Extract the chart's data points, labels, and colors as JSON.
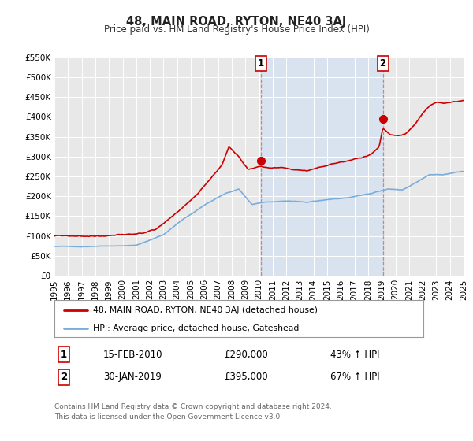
{
  "title": "48, MAIN ROAD, RYTON, NE40 3AJ",
  "subtitle": "Price paid vs. HM Land Registry's House Price Index (HPI)",
  "xlim": [
    1995,
    2025
  ],
  "ylim": [
    0,
    550000
  ],
  "yticks": [
    0,
    50000,
    100000,
    150000,
    200000,
    250000,
    300000,
    350000,
    400000,
    450000,
    500000,
    550000
  ],
  "ytick_labels": [
    "£0",
    "£50K",
    "£100K",
    "£150K",
    "£200K",
    "£250K",
    "£300K",
    "£350K",
    "£400K",
    "£450K",
    "£500K",
    "£550K"
  ],
  "xticks": [
    1995,
    1996,
    1997,
    1998,
    1999,
    2000,
    2001,
    2002,
    2003,
    2004,
    2005,
    2006,
    2007,
    2008,
    2009,
    2010,
    2011,
    2012,
    2013,
    2014,
    2015,
    2016,
    2017,
    2018,
    2019,
    2020,
    2021,
    2022,
    2023,
    2024,
    2025
  ],
  "bg_color": "#e8e8e8",
  "grid_color": "#ffffff",
  "red_line_color": "#cc0000",
  "blue_line_color": "#7aaddc",
  "sale1_x": 2010.12,
  "sale1_y": 290000,
  "sale2_x": 2019.08,
  "sale2_y": 395000,
  "vline_color": "#cc3333",
  "vline_alpha": 0.55,
  "legend_label_red": "48, MAIN ROAD, RYTON, NE40 3AJ (detached house)",
  "legend_label_blue": "HPI: Average price, detached house, Gateshead",
  "sale1_date": "15-FEB-2010",
  "sale1_price": "£290,000",
  "sale1_hpi": "43% ↑ HPI",
  "sale2_date": "30-JAN-2019",
  "sale2_price": "£395,000",
  "sale2_hpi": "67% ↑ HPI",
  "footer": "Contains HM Land Registry data © Crown copyright and database right 2024.\nThis data is licensed under the Open Government Licence v3.0.",
  "shaded_region_color": "#cce0f5",
  "shaded_region_alpha": 0.55,
  "sale_marker_color": "#cc0000",
  "sale_marker_size": 7
}
